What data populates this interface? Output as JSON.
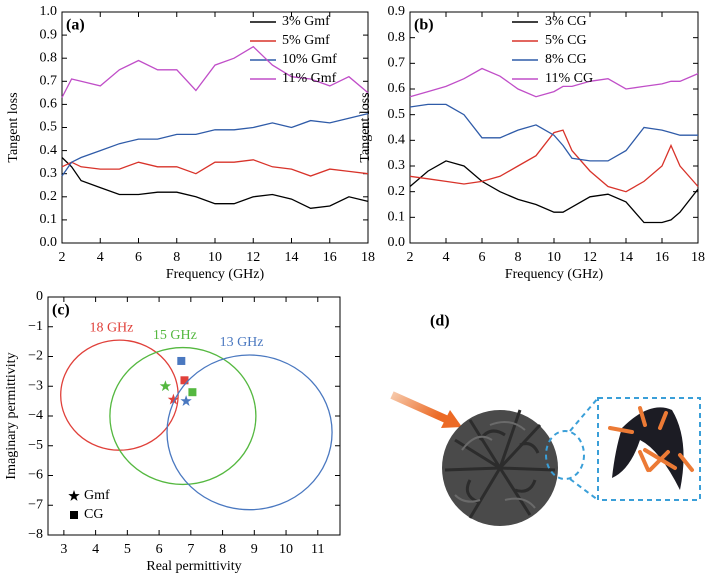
{
  "chart_data": [
    {
      "type": "line",
      "panel": "(a)",
      "x_label": "Frequency (GHz)",
      "y_label": "Tangent loss",
      "x": [
        2,
        2.5,
        3,
        4,
        5,
        6,
        7,
        8,
        9,
        10,
        11,
        12,
        13,
        14,
        15,
        16,
        17,
        18
      ],
      "xlim": [
        2,
        18
      ],
      "ylim": [
        0,
        1
      ],
      "xticks": [
        2,
        4,
        6,
        8,
        10,
        12,
        14,
        16,
        18
      ],
      "yticks": [
        {
          "value": 0,
          "label": "0.0"
        },
        0.1,
        0.2,
        0.3,
        0.4,
        0.5,
        0.6,
        0.7,
        0.8,
        0.9,
        {
          "value": 1,
          "label": "1.0"
        }
      ],
      "series": [
        {
          "name": "3% Gmf",
          "color": "#000000",
          "values": [
            0.37,
            0.33,
            0.27,
            0.24,
            0.21,
            0.21,
            0.22,
            0.22,
            0.2,
            0.17,
            0.17,
            0.2,
            0.21,
            0.19,
            0.15,
            0.16,
            0.2,
            0.18
          ]
        },
        {
          "name": "5% Gmf",
          "color": "#d8332a",
          "values": [
            0.33,
            0.35,
            0.33,
            0.32,
            0.32,
            0.35,
            0.33,
            0.33,
            0.3,
            0.35,
            0.35,
            0.36,
            0.33,
            0.32,
            0.29,
            0.32,
            0.31,
            0.3
          ]
        },
        {
          "name": "10% Gmf",
          "color": "#2f5ba8",
          "values": [
            0.29,
            0.35,
            0.37,
            0.4,
            0.43,
            0.45,
            0.45,
            0.47,
            0.47,
            0.49,
            0.49,
            0.5,
            0.52,
            0.5,
            0.53,
            0.52,
            0.54,
            0.56
          ]
        },
        {
          "name": "11% Gmf",
          "color": "#c04ec8",
          "values": [
            0.63,
            0.71,
            0.7,
            0.68,
            0.75,
            0.79,
            0.75,
            0.75,
            0.66,
            0.77,
            0.8,
            0.85,
            0.77,
            0.72,
            0.71,
            0.68,
            0.72,
            0.65
          ]
        }
      ]
    },
    {
      "type": "line",
      "panel": "(b)",
      "x_label": "Frequency (GHz)",
      "y_label": "Tangent loss",
      "x": [
        2,
        3,
        4,
        5,
        6,
        7,
        8,
        9,
        10,
        10.5,
        11,
        12,
        13,
        14,
        15,
        16,
        16.5,
        17,
        18
      ],
      "xlim": [
        2,
        18
      ],
      "ylim": [
        0,
        0.9
      ],
      "xticks": [
        2,
        4,
        6,
        8,
        10,
        12,
        14,
        16,
        18
      ],
      "yticks": [
        {
          "value": 0,
          "label": "0.0"
        },
        0.1,
        0.2,
        0.3,
        0.4,
        0.5,
        0.6,
        0.7,
        0.8,
        0.9
      ],
      "series": [
        {
          "name": "3% CG",
          "color": "#000000",
          "values": [
            0.22,
            0.28,
            0.32,
            0.3,
            0.24,
            0.2,
            0.17,
            0.15,
            0.12,
            0.12,
            0.14,
            0.18,
            0.19,
            0.16,
            0.08,
            0.08,
            0.09,
            0.12,
            0.21
          ]
        },
        {
          "name": "5% CG",
          "color": "#d8332a",
          "values": [
            0.26,
            0.25,
            0.24,
            0.23,
            0.24,
            0.26,
            0.3,
            0.34,
            0.43,
            0.44,
            0.36,
            0.28,
            0.22,
            0.2,
            0.24,
            0.3,
            0.38,
            0.3,
            0.22
          ]
        },
        {
          "name": "8% CG",
          "color": "#2f5ba8",
          "values": [
            0.53,
            0.54,
            0.54,
            0.5,
            0.41,
            0.41,
            0.44,
            0.46,
            0.42,
            0.38,
            0.33,
            0.32,
            0.32,
            0.36,
            0.45,
            0.44,
            0.43,
            0.42,
            0.42
          ]
        },
        {
          "name": "11% CG",
          "color": "#c04ec8",
          "values": [
            0.57,
            0.59,
            0.61,
            0.64,
            0.68,
            0.65,
            0.6,
            0.57,
            0.59,
            0.61,
            0.61,
            0.63,
            0.64,
            0.6,
            0.61,
            0.62,
            0.63,
            0.63,
            0.66
          ]
        }
      ]
    },
    {
      "type": "circles",
      "panel": "(c)",
      "x_label": "Real permittivity",
      "y_label": "Imaginary permittivity",
      "xlim": [
        2.5,
        11.7
      ],
      "ylim": [
        -8,
        0
      ],
      "xticks": [
        3,
        4,
        5,
        6,
        7,
        8,
        9,
        10,
        11
      ],
      "yticks": [
        0,
        {
          "value": -1,
          "label": "−1"
        },
        {
          "value": -2,
          "label": "−2"
        },
        {
          "value": -3,
          "label": "−3"
        },
        {
          "value": -4,
          "label": "−4"
        },
        {
          "value": -5,
          "label": "−5"
        },
        {
          "value": -6,
          "label": "−6"
        },
        {
          "value": -7,
          "label": "−7"
        },
        {
          "value": -8,
          "label": "−8"
        }
      ],
      "legend": [
        "Gmf",
        "CG"
      ],
      "circles": [
        {
          "label": "18 GHz",
          "color": "#e0403a",
          "cx": 4.75,
          "cy": -3.3,
          "r": 1.85,
          "gmf": [
            6.45,
            -3.45
          ],
          "cg": [
            6.8,
            -2.8
          ]
        },
        {
          "label": "15 GHz",
          "color": "#55b840",
          "cx": 6.75,
          "cy": -4.0,
          "r": 2.3,
          "gmf": [
            6.2,
            -3.0
          ],
          "cg": [
            7.05,
            -3.2
          ]
        },
        {
          "label": "13 GHz",
          "color": "#4a78c0",
          "cx": 8.85,
          "cy": -4.55,
          "r": 2.6,
          "gmf": [
            6.85,
            -3.5
          ],
          "cg": [
            6.7,
            -2.15
          ]
        }
      ]
    }
  ],
  "panel_d": {
    "label": "(d)"
  }
}
